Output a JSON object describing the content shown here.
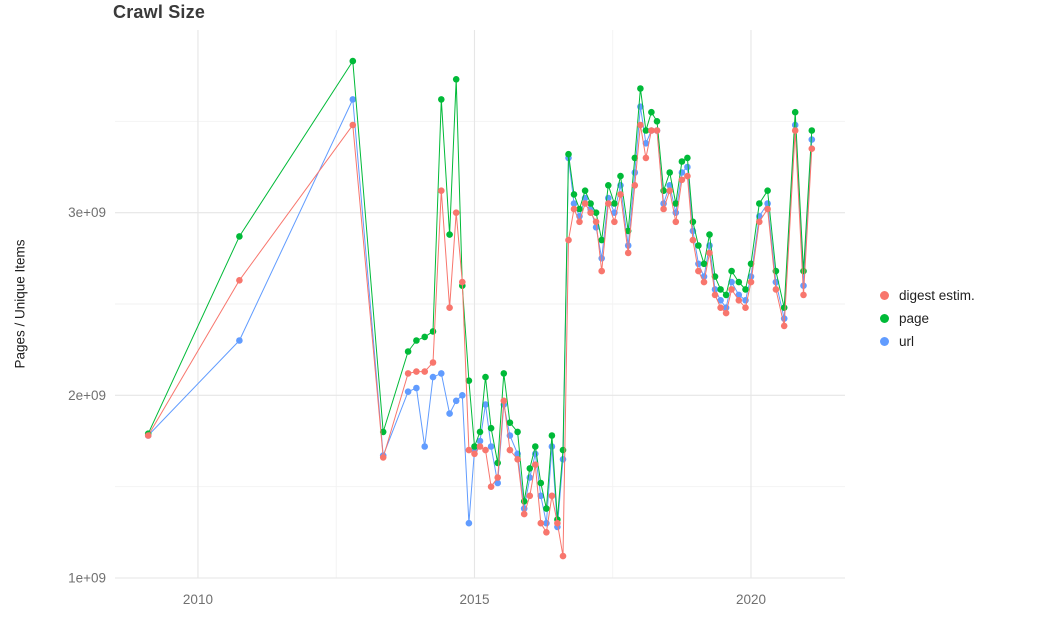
{
  "title": "Crawl Size",
  "y_axis": {
    "label": "Pages / Unique Items",
    "tick_labels": [
      "1e+09",
      "2e+09",
      "3e+09"
    ],
    "tick_values": [
      1,
      2,
      3
    ]
  },
  "x_axis": {
    "tick_labels": [
      "2010",
      "2015",
      "2020"
    ],
    "tick_values": [
      2010,
      2015,
      2020
    ]
  },
  "legend": {
    "items": [
      {
        "label": "digest estim.",
        "color": "#F8766D"
      },
      {
        "label": "page",
        "color": "#00BA38"
      },
      {
        "label": "url",
        "color": "#619CFF"
      }
    ]
  },
  "chart_data": {
    "type": "line",
    "title": "Crawl Size",
    "xlabel": "",
    "ylabel": "Pages / Unique Items",
    "x_unit": "year",
    "y_unit": "count x 1e9",
    "xlim": [
      2008.5,
      2021.7
    ],
    "ylim": [
      1.0,
      4.0
    ],
    "x_ticks": [
      2010,
      2015,
      2020
    ],
    "x_tick_labels": [
      "2010",
      "2015",
      "2020"
    ],
    "y_ticks": [
      1,
      2,
      3
    ],
    "y_tick_labels": [
      "1e+09",
      "2e+09",
      "3e+09"
    ],
    "grid": true,
    "legend_position": "right",
    "x": [
      2009.1,
      2010.75,
      2012.8,
      2013.35,
      2013.8,
      2013.95,
      2014.1,
      2014.25,
      2014.4,
      2014.55,
      2014.67,
      2014.78,
      2014.9,
      2015.0,
      2015.1,
      2015.2,
      2015.3,
      2015.42,
      2015.53,
      2015.64,
      2015.78,
      2015.9,
      2016.0,
      2016.1,
      2016.2,
      2016.3,
      2016.4,
      2016.5,
      2016.6,
      2016.7,
      2016.8,
      2016.9,
      2017.0,
      2017.1,
      2017.2,
      2017.3,
      2017.42,
      2017.53,
      2017.64,
      2017.78,
      2017.9,
      2018.0,
      2018.1,
      2018.2,
      2018.3,
      2018.42,
      2018.53,
      2018.64,
      2018.75,
      2018.85,
      2018.95,
      2019.05,
      2019.15,
      2019.25,
      2019.35,
      2019.45,
      2019.55,
      2019.65,
      2019.78,
      2019.9,
      2020.0,
      2020.15,
      2020.3,
      2020.45,
      2020.6,
      2020.8,
      2020.95,
      2021.1
    ],
    "series": [
      {
        "name": "digest estim.",
        "color": "#F8766D",
        "values": [
          1.78,
          2.63,
          3.48,
          1.66,
          2.12,
          2.13,
          2.13,
          2.18,
          3.12,
          2.48,
          3.0,
          2.62,
          1.7,
          1.68,
          1.72,
          1.7,
          1.5,
          1.55,
          1.97,
          1.7,
          1.65,
          1.35,
          1.45,
          1.62,
          1.3,
          1.25,
          1.45,
          1.3,
          1.12,
          2.85,
          3.02,
          2.95,
          3.05,
          3.0,
          2.95,
          2.68,
          3.05,
          2.95,
          3.1,
          2.78,
          3.15,
          3.48,
          3.3,
          3.45,
          3.45,
          3.02,
          3.12,
          2.95,
          3.18,
          3.2,
          2.85,
          2.68,
          2.62,
          2.78,
          2.55,
          2.48,
          2.45,
          2.58,
          2.52,
          2.48,
          2.62,
          2.95,
          3.02,
          2.58,
          2.38,
          3.45,
          2.55,
          3.35
        ]
      },
      {
        "name": "page",
        "color": "#00BA38",
        "values": [
          1.79,
          2.87,
          3.83,
          1.8,
          2.24,
          2.3,
          2.32,
          2.35,
          3.62,
          2.88,
          3.73,
          2.6,
          2.08,
          1.72,
          1.8,
          2.1,
          1.82,
          1.63,
          2.12,
          1.85,
          1.8,
          1.42,
          1.6,
          1.72,
          1.52,
          1.38,
          1.78,
          1.32,
          1.7,
          3.32,
          3.1,
          3.02,
          3.12,
          3.05,
          3.0,
          2.85,
          3.15,
          3.05,
          3.2,
          2.9,
          3.3,
          3.68,
          3.45,
          3.55,
          3.5,
          3.12,
          3.22,
          3.05,
          3.28,
          3.3,
          2.95,
          2.82,
          2.72,
          2.88,
          2.65,
          2.58,
          2.55,
          2.68,
          2.62,
          2.58,
          2.72,
          3.05,
          3.12,
          2.68,
          2.48,
          3.55,
          2.68,
          3.45
        ]
      },
      {
        "name": "url",
        "color": "#619CFF",
        "values": [
          1.78,
          2.3,
          3.62,
          1.67,
          2.02,
          2.04,
          1.72,
          2.1,
          2.12,
          1.9,
          1.97,
          2.0,
          1.3,
          1.7,
          1.75,
          1.95,
          1.72,
          1.52,
          1.95,
          1.78,
          1.68,
          1.38,
          1.55,
          1.68,
          1.45,
          1.3,
          1.72,
          1.28,
          1.65,
          3.3,
          3.05,
          2.98,
          3.08,
          3.02,
          2.92,
          2.75,
          3.08,
          3.0,
          3.15,
          2.82,
          3.22,
          3.58,
          3.38,
          3.45,
          3.45,
          3.05,
          3.15,
          3.0,
          3.22,
          3.25,
          2.9,
          2.72,
          2.65,
          2.82,
          2.58,
          2.52,
          2.48,
          2.62,
          2.55,
          2.52,
          2.65,
          2.98,
          3.05,
          2.62,
          2.42,
          3.48,
          2.6,
          3.4
        ]
      }
    ]
  }
}
